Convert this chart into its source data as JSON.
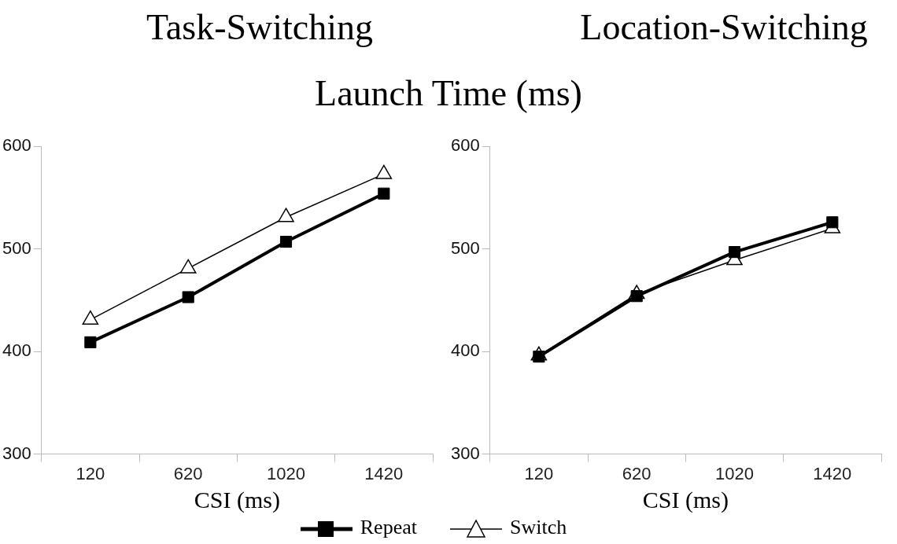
{
  "chart_data": [
    {
      "type": "line",
      "title": "Task-Switching",
      "subtitle": "Launch Time (ms)",
      "xlabel": "CSI (ms)",
      "categories": [
        "120",
        "620",
        "1020",
        "1420"
      ],
      "ylim": [
        300,
        600
      ],
      "yticks": [
        300,
        400,
        500,
        600
      ],
      "grid": false,
      "legend": "bottom",
      "series": [
        {
          "name": "Repeat",
          "color": "#000000",
          "marker": "square",
          "values": [
            409,
            453,
            507,
            554
          ]
        },
        {
          "name": "Switch",
          "color": "#000000",
          "marker": "triangle",
          "values": [
            431,
            481,
            531,
            573
          ]
        }
      ]
    },
    {
      "type": "line",
      "title": "Location-Switching",
      "xlabel": "CSI (ms)",
      "categories": [
        "120",
        "620",
        "1020",
        "1420"
      ],
      "ylim": [
        300,
        600
      ],
      "yticks": [
        300,
        400,
        500,
        600
      ],
      "grid": false,
      "legend": "bottom",
      "series": [
        {
          "name": "Repeat",
          "color": "#000000",
          "marker": "square",
          "values": [
            395,
            454,
            497,
            526
          ]
        },
        {
          "name": "Switch",
          "color": "#000000",
          "marker": "triangle",
          "values": [
            396,
            456,
            489,
            520
          ]
        }
      ]
    }
  ]
}
